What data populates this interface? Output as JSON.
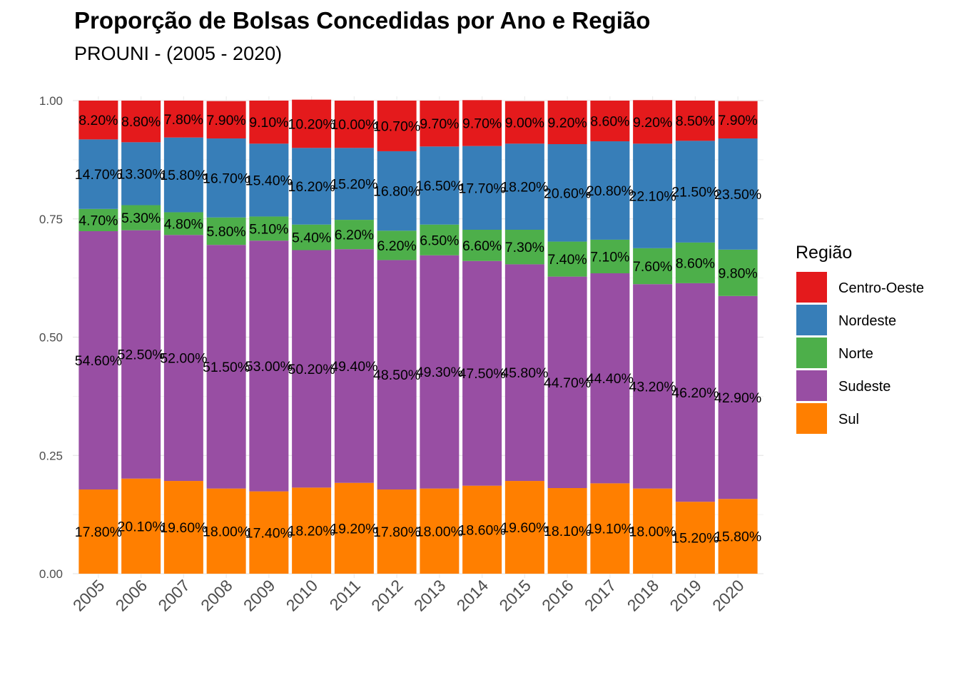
{
  "chart_data": {
    "type": "bar",
    "stacked": true,
    "title": "Proporção de Bolsas Concedidas por Ano e Região",
    "subtitle": "PROUNI - (2005 - 2020)",
    "xlabel": "",
    "ylabel": "",
    "ylim": [
      0,
      1
    ],
    "yticks": [
      "0.00",
      "0.25",
      "0.50",
      "0.75",
      "1.00"
    ],
    "ytick_values": [
      0,
      0.25,
      0.5,
      0.75,
      1.0
    ],
    "grid": true,
    "legend_title": "Região",
    "legend_position": "right",
    "categories": [
      "2005",
      "2006",
      "2007",
      "2008",
      "2009",
      "2010",
      "2011",
      "2012",
      "2013",
      "2014",
      "2015",
      "2016",
      "2017",
      "2018",
      "2019",
      "2020"
    ],
    "series": [
      {
        "name": "Sul",
        "color": "#FF7F00",
        "values": [
          0.178,
          0.201,
          0.196,
          0.18,
          0.174,
          0.182,
          0.192,
          0.178,
          0.18,
          0.186,
          0.196,
          0.181,
          0.191,
          0.18,
          0.152,
          0.158
        ],
        "labels": [
          "17.80%",
          "20.10%",
          "19.60%",
          "18.00%",
          "17.40%",
          "18.20%",
          "19.20%",
          "17.80%",
          "18.00%",
          "18.60%",
          "19.60%",
          "18.10%",
          "19.10%",
          "18.00%",
          "15.20%",
          "15.80%"
        ]
      },
      {
        "name": "Sudeste",
        "color": "#984EA3",
        "values": [
          0.546,
          0.525,
          0.52,
          0.515,
          0.53,
          0.502,
          0.494,
          0.485,
          0.493,
          0.475,
          0.458,
          0.447,
          0.444,
          0.432,
          0.462,
          0.429
        ],
        "labels": [
          "54.60%",
          "52.50%",
          "52.00%",
          "51.50%",
          "53.00%",
          "50.20%",
          "49.40%",
          "48.50%",
          "49.30%",
          "47.50%",
          "45.80%",
          "44.70%",
          "44.40%",
          "43.20%",
          "46.20%",
          "42.90%"
        ]
      },
      {
        "name": "Norte",
        "color": "#4DAF4A",
        "values": [
          0.047,
          0.053,
          0.048,
          0.058,
          0.051,
          0.054,
          0.062,
          0.062,
          0.065,
          0.066,
          0.073,
          0.074,
          0.071,
          0.076,
          0.086,
          0.098
        ],
        "labels": [
          "4.70%",
          "5.30%",
          "4.80%",
          "5.80%",
          "5.10%",
          "5.40%",
          "6.20%",
          "6.20%",
          "6.50%",
          "6.60%",
          "7.30%",
          "7.40%",
          "7.10%",
          "7.60%",
          "8.60%",
          "9.80%"
        ]
      },
      {
        "name": "Nordeste",
        "color": "#377EB8",
        "values": [
          0.147,
          0.133,
          0.158,
          0.167,
          0.154,
          0.162,
          0.152,
          0.168,
          0.165,
          0.177,
          0.182,
          0.206,
          0.208,
          0.221,
          0.215,
          0.235
        ],
        "labels": [
          "14.70%",
          "13.30%",
          "15.80%",
          "16.70%",
          "15.40%",
          "16.20%",
          "15.20%",
          "16.80%",
          "16.50%",
          "17.70%",
          "18.20%",
          "20.60%",
          "20.80%",
          "22.10%",
          "21.50%",
          "23.50%"
        ]
      },
      {
        "name": "Centro-Oeste",
        "color": "#E41A1C",
        "values": [
          0.082,
          0.088,
          0.078,
          0.079,
          0.091,
          0.102,
          0.1,
          0.107,
          0.097,
          0.097,
          0.09,
          0.092,
          0.086,
          0.092,
          0.085,
          0.079
        ],
        "labels": [
          "8.20%",
          "8.80%",
          "7.80%",
          "7.90%",
          "9.10%",
          "10.20%",
          "10.00%",
          "10.70%",
          "9.70%",
          "9.70%",
          "9.00%",
          "9.20%",
          "8.60%",
          "9.20%",
          "8.50%",
          "7.90%"
        ]
      }
    ],
    "legend_order": [
      "Centro-Oeste",
      "Nordeste",
      "Norte",
      "Sudeste",
      "Sul"
    ]
  }
}
